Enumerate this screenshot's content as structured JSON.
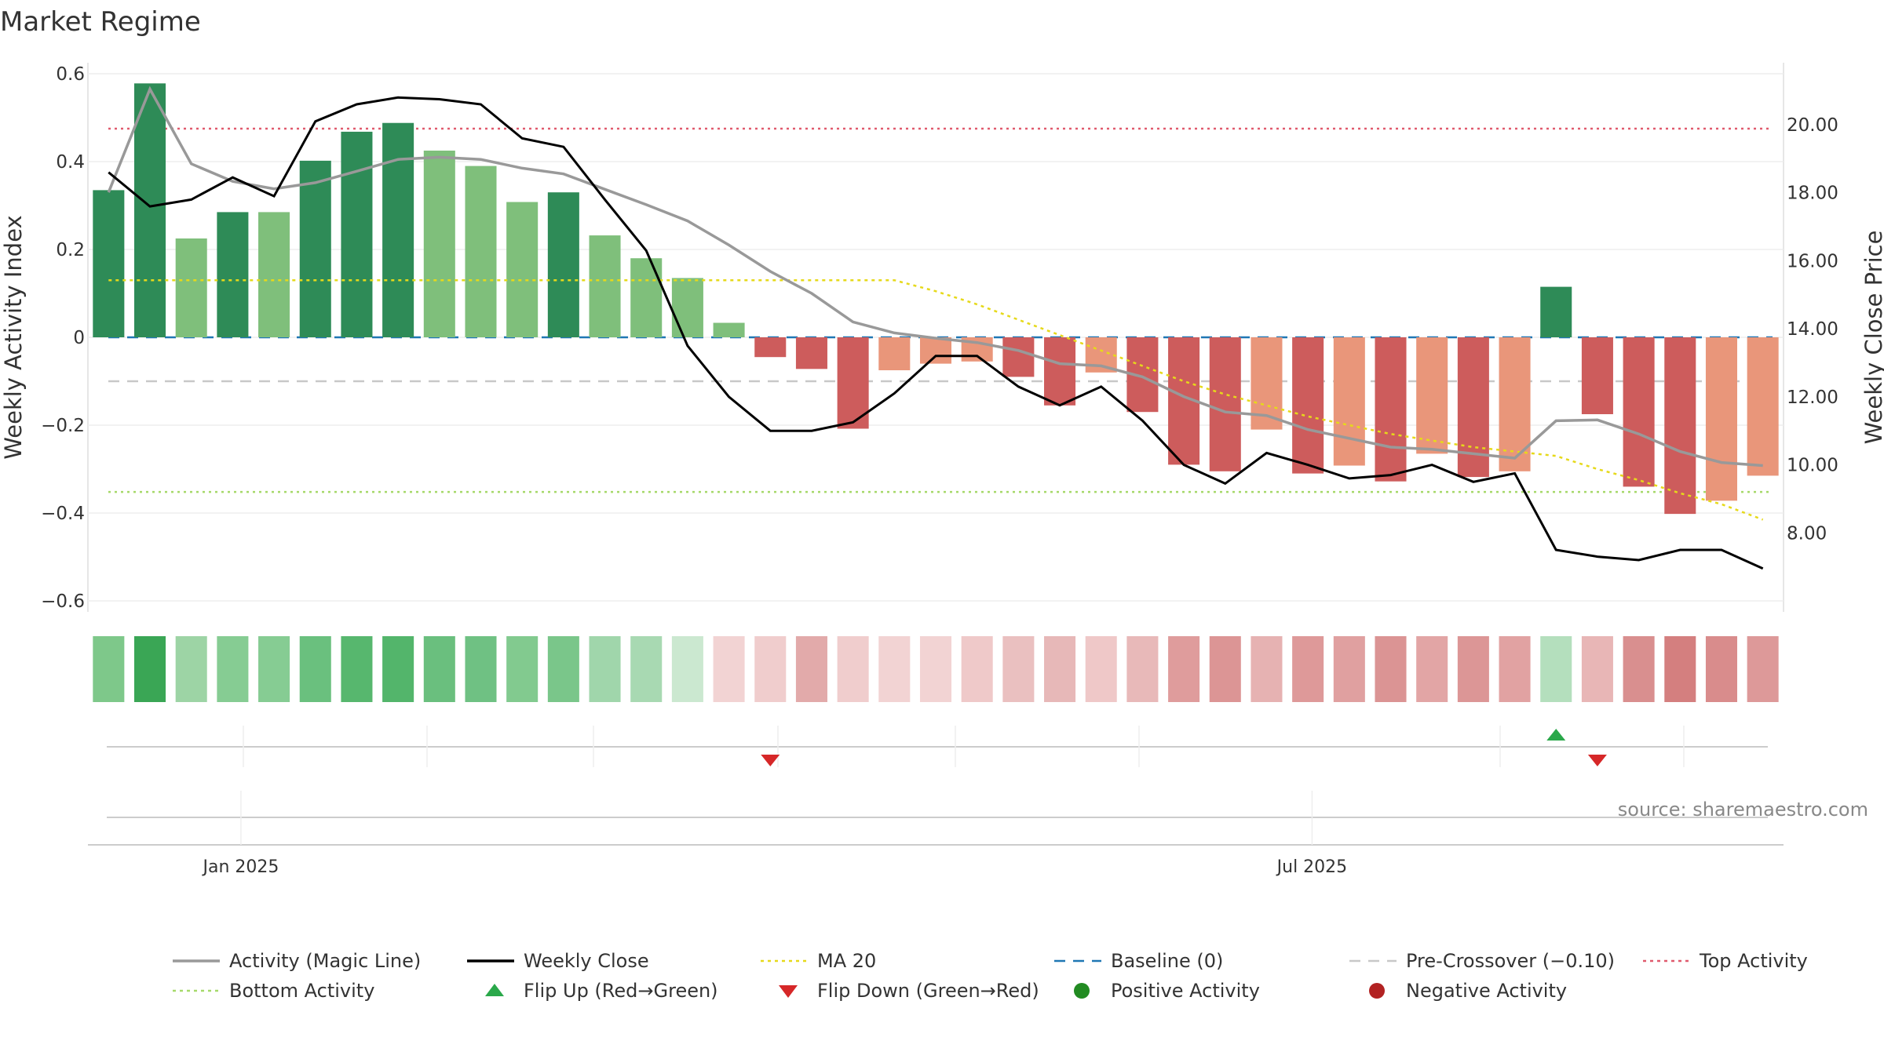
{
  "chart_data": {
    "type": "bar",
    "title": "Market Regime",
    "y_left_label": "Weekly Activity Index",
    "y_right_label": "Weekly Close Price",
    "y_left_range": [
      -0.6,
      0.6
    ],
    "y_left_ticks": [
      "0.6",
      "0.4",
      "0.2",
      "0",
      "−0.2",
      "−0.4",
      "−0.6"
    ],
    "y_left_tick_values": [
      0.6,
      0.4,
      0.2,
      0,
      -0.2,
      -0.4,
      -0.6
    ],
    "y_right_range": [
      6.0,
      21.5
    ],
    "y_right_ticks": [
      "20.00",
      "18.00",
      "16.00",
      "14.00",
      "12.00",
      "10.00",
      "8.00"
    ],
    "y_right_tick_values": [
      20,
      18,
      16,
      14,
      12,
      10,
      8
    ],
    "x_date_labels": [
      "Jan 2025",
      "Jul 2025"
    ],
    "x_date_label_weeks": [
      3.7,
      29.6
    ],
    "grid": true,
    "weeks": 41,
    "activity_index": [
      0.335,
      0.578,
      0.225,
      0.285,
      0.285,
      0.402,
      0.468,
      0.488,
      0.425,
      0.39,
      0.308,
      0.33,
      0.232,
      0.18,
      0.135,
      0.033,
      -0.045,
      -0.072,
      -0.208,
      -0.075,
      -0.06,
      -0.055,
      -0.09,
      -0.155,
      -0.08,
      -0.17,
      -0.29,
      -0.305,
      -0.21,
      -0.31,
      -0.292,
      -0.328,
      -0.265,
      -0.318,
      -0.305,
      0.115,
      -0.175,
      -0.34,
      -0.402,
      -0.372,
      -0.315
    ],
    "bar_colors": [
      "#2e8b57",
      "#2e8b57",
      "#7fbf7b",
      "#2e8b57",
      "#7fbf7b",
      "#2e8b57",
      "#2e8b57",
      "#2e8b57",
      "#7fbf7b",
      "#7fbf7b",
      "#7fbf7b",
      "#2e8b57",
      "#7fbf7b",
      "#7fbf7b",
      "#7fbf7b",
      "#7fbf7b",
      "#cd5c5c",
      "#cd5c5c",
      "#cd5c5c",
      "#e9967a",
      "#e9967a",
      "#e9967a",
      "#cd5c5c",
      "#cd5c5c",
      "#e9967a",
      "#cd5c5c",
      "#cd5c5c",
      "#cd5c5c",
      "#e9967a",
      "#cd5c5c",
      "#e9967a",
      "#cd5c5c",
      "#e9967a",
      "#cd5c5c",
      "#e9967a",
      "#2e8b57",
      "#cd5c5c",
      "#cd5c5c",
      "#cd5c5c",
      "#e9967a",
      "#e9967a"
    ],
    "magic_line": [
      0.33,
      0.565,
      0.395,
      0.355,
      0.338,
      0.352,
      0.378,
      0.405,
      0.41,
      0.405,
      0.385,
      0.372,
      0.337,
      0.302,
      0.265,
      0.21,
      0.15,
      0.1,
      0.035,
      0.01,
      -0.002,
      -0.012,
      -0.03,
      -0.06,
      -0.065,
      -0.09,
      -0.135,
      -0.17,
      -0.178,
      -0.21,
      -0.23,
      -0.25,
      -0.255,
      -0.265,
      -0.275,
      -0.19,
      -0.188,
      -0.22,
      -0.26,
      -0.285,
      -0.292
    ],
    "weekly_close": [
      18.6,
      17.6,
      17.8,
      18.45,
      17.9,
      20.1,
      20.6,
      20.8,
      20.75,
      20.6,
      19.6,
      19.35,
      17.8,
      16.3,
      13.5,
      12.0,
      11.0,
      11.0,
      11.25,
      12.1,
      13.2,
      13.2,
      12.3,
      11.75,
      12.3,
      11.3,
      10.0,
      9.45,
      10.35,
      10.0,
      9.6,
      9.7,
      10.0,
      9.5,
      9.75,
      7.5,
      7.3,
      7.2,
      7.5,
      7.5,
      6.95
    ],
    "ma20": [
      0.13,
      0.13,
      0.13,
      0.13,
      0.13,
      0.13,
      0.13,
      0.13,
      0.13,
      0.13,
      0.13,
      0.13,
      0.13,
      0.13,
      0.13,
      0.13,
      0.13,
      0.13,
      0.13,
      0.13,
      0.105,
      0.075,
      0.04,
      0.005,
      -0.03,
      -0.065,
      -0.1,
      -0.13,
      -0.155,
      -0.18,
      -0.2,
      -0.22,
      -0.235,
      -0.25,
      -0.26,
      -0.27,
      -0.3,
      -0.325,
      -0.355,
      -0.38,
      -0.415
    ],
    "baseline": 0,
    "pre_crossover": -0.1,
    "top_activity": 0.475,
    "bottom_activity": -0.352,
    "heat_strip_colors": [
      "#7ec88a",
      "#3aa655",
      "#9dd4a5",
      "#86cc93",
      "#86cc93",
      "#6ac07e",
      "#57b76e",
      "#53b56b",
      "#6abf7e",
      "#6fc183",
      "#82ca8f",
      "#7ac68a",
      "#a0d6ab",
      "#a8d9b2",
      "#cbe8d0",
      "#f2d3d3",
      "#f0cdcd",
      "#e2aaaa",
      "#f0cdcd",
      "#f2d3d3",
      "#f2d3d3",
      "#efc9c9",
      "#eac0c0",
      "#e7b8b8",
      "#efc8c8",
      "#e8b9b9",
      "#df9c9c",
      "#dc9595",
      "#e6b2b2",
      "#de9999",
      "#e0a0a0",
      "#db9494",
      "#e2a5a5",
      "#dc9696",
      "#e1a2a2",
      "#b4dfbd",
      "#e8b6b6",
      "#d98f8f",
      "#d47f7f",
      "#d98c8c",
      "#dd9999"
    ],
    "flip_up_weeks": [
      35.5
    ],
    "flip_down_weeks": [
      16.5,
      36.5
    ],
    "source": "source: sharemaestro.com",
    "legend": [
      {
        "label": "Activity (Magic Line)",
        "style": "line",
        "color": "#999999"
      },
      {
        "label": "Weekly Close",
        "style": "line",
        "color": "#000000"
      },
      {
        "label": "MA 20",
        "style": "dotted",
        "color": "#e6d91a"
      },
      {
        "label": "Baseline (0)",
        "style": "dashed",
        "color": "#1f77b4"
      },
      {
        "label": "Pre-Crossover (−0.10)",
        "style": "dashed",
        "color": "#c8c8c8"
      },
      {
        "label": "Top Activity",
        "style": "dotted",
        "color": "#e05a6e"
      },
      {
        "label": "Bottom Activity",
        "style": "dotted",
        "color": "#a6d96a"
      },
      {
        "label": "Flip Up (Red→Green)",
        "style": "triangle-up",
        "color": "#2aa84a"
      },
      {
        "label": "Flip Down (Green→Red)",
        "style": "triangle-down",
        "color": "#d62728"
      },
      {
        "label": "Positive Activity",
        "style": "dot",
        "color": "#228b22"
      },
      {
        "label": "Negative Activity",
        "style": "dot",
        "color": "#b22222"
      }
    ]
  }
}
